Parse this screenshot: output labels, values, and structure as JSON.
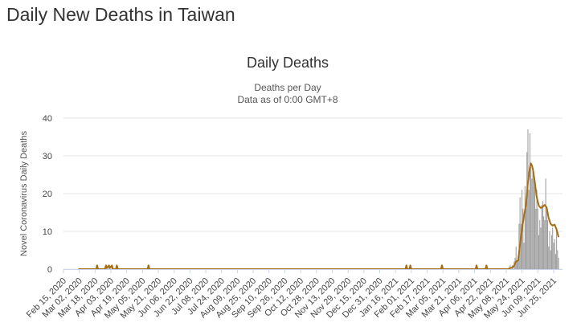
{
  "page": {
    "title": "Daily New Deaths in Taiwan"
  },
  "chart_data": {
    "type": "bar",
    "title": "Daily Deaths",
    "subtitle_line1": "Deaths per Day",
    "subtitle_line2": "Data as of 0:00 GMT+8",
    "ylabel": "Novel Coronavirus Daily Deaths",
    "xlabel": "",
    "ylim": [
      0,
      40
    ],
    "yticks": [
      0,
      10,
      20,
      30,
      40
    ],
    "grid": true,
    "legend": "none",
    "x_start": "2020-02-15",
    "x_end": "2021-07-04",
    "x_tick_labels": [
      "Feb 15, 2020",
      "Mar 02, 2020",
      "Mar 18, 2020",
      "Apr 03, 2020",
      "Apr 19, 2020",
      "May 05, 2020",
      "May 21, 2020",
      "Jun 06, 2020",
      "Jun 22, 2020",
      "Jul 08, 2020",
      "Jul 24, 2020",
      "Aug 09, 2020",
      "Aug 25, 2020",
      "Sep 10, 2020",
      "Sep 26, 2020",
      "Oct 12, 2020",
      "Oct 28, 2020",
      "Nov 13, 2020",
      "Nov 29, 2020",
      "Dec 15, 2020",
      "Dec 31, 2020",
      "Jan 16, 2021",
      "Feb 01, 2021",
      "Feb 17, 2021",
      "Mar 05, 2021",
      "Mar 21, 2021",
      "Apr 06, 2021",
      "Apr 22, 2021",
      "May 08, 2021",
      "May 24, 2021",
      "Jun 09, 2021",
      "Jun 25, 2021"
    ],
    "bar_color": "#999999",
    "line_color": "#a86d14",
    "daily_deaths": [
      {
        "date": "2020-03-20",
        "value": 1
      },
      {
        "date": "2020-03-29",
        "value": 1
      },
      {
        "date": "2020-04-01",
        "value": 1
      },
      {
        "date": "2020-04-04",
        "value": 1
      },
      {
        "date": "2020-04-09",
        "value": 1
      },
      {
        "date": "2020-05-11",
        "value": 1
      },
      {
        "date": "2021-01-27",
        "value": 1
      },
      {
        "date": "2021-01-31",
        "value": 1
      },
      {
        "date": "2021-03-04",
        "value": 1
      },
      {
        "date": "2021-04-08",
        "value": 1
      },
      {
        "date": "2021-04-18",
        "value": 1
      },
      {
        "date": "2021-05-12",
        "value": 1
      },
      {
        "date": "2021-05-14",
        "value": 1
      },
      {
        "date": "2021-05-16",
        "value": 2
      },
      {
        "date": "2021-05-17",
        "value": 3
      },
      {
        "date": "2021-05-18",
        "value": 6
      },
      {
        "date": "2021-05-19",
        "value": 2
      },
      {
        "date": "2021-05-20",
        "value": 2
      },
      {
        "date": "2021-05-21",
        "value": 12
      },
      {
        "date": "2021-05-22",
        "value": 19
      },
      {
        "date": "2021-05-23",
        "value": 12
      },
      {
        "date": "2021-05-24",
        "value": 21
      },
      {
        "date": "2021-05-25",
        "value": 16
      },
      {
        "date": "2021-05-26",
        "value": 7
      },
      {
        "date": "2021-05-27",
        "value": 22
      },
      {
        "date": "2021-05-28",
        "value": 16
      },
      {
        "date": "2021-05-29",
        "value": 31
      },
      {
        "date": "2021-05-30",
        "value": 37
      },
      {
        "date": "2021-05-31",
        "value": 21
      },
      {
        "date": "2021-06-01",
        "value": 36
      },
      {
        "date": "2021-06-02",
        "value": 27
      },
      {
        "date": "2021-06-03",
        "value": 24
      },
      {
        "date": "2021-06-04",
        "value": 26
      },
      {
        "date": "2021-06-05",
        "value": 24
      },
      {
        "date": "2021-06-06",
        "value": 23
      },
      {
        "date": "2021-06-07",
        "value": 16
      },
      {
        "date": "2021-06-08",
        "value": 21
      },
      {
        "date": "2021-06-09",
        "value": 16
      },
      {
        "date": "2021-06-10",
        "value": 9
      },
      {
        "date": "2021-06-11",
        "value": 13
      },
      {
        "date": "2021-06-12",
        "value": 11
      },
      {
        "date": "2021-06-13",
        "value": 17
      },
      {
        "date": "2021-06-14",
        "value": 18
      },
      {
        "date": "2021-06-15",
        "value": 14
      },
      {
        "date": "2021-06-16",
        "value": 13
      },
      {
        "date": "2021-06-17",
        "value": 24
      },
      {
        "date": "2021-06-18",
        "value": 16
      },
      {
        "date": "2021-06-19",
        "value": 13
      },
      {
        "date": "2021-06-20",
        "value": 6
      },
      {
        "date": "2021-06-21",
        "value": 10
      },
      {
        "date": "2021-06-22",
        "value": 5
      },
      {
        "date": "2021-06-23",
        "value": 9
      },
      {
        "date": "2021-06-24",
        "value": 11
      },
      {
        "date": "2021-06-25",
        "value": 7
      },
      {
        "date": "2021-06-26",
        "value": 8
      },
      {
        "date": "2021-06-27",
        "value": 4
      },
      {
        "date": "2021-06-28",
        "value": 11
      },
      {
        "date": "2021-06-29",
        "value": 5
      },
      {
        "date": "2021-06-30",
        "value": 3
      }
    ],
    "moving_average_7day": [
      {
        "date": "2020-03-01",
        "value": 0
      },
      {
        "date": "2020-03-19",
        "value": 0
      },
      {
        "date": "2020-03-20",
        "value": 1
      },
      {
        "date": "2020-03-21",
        "value": 0
      },
      {
        "date": "2020-03-28",
        "value": 0
      },
      {
        "date": "2020-03-29",
        "value": 1
      },
      {
        "date": "2020-03-30",
        "value": 0.3
      },
      {
        "date": "2020-04-01",
        "value": 1
      },
      {
        "date": "2020-04-02",
        "value": 0.3
      },
      {
        "date": "2020-04-04",
        "value": 1
      },
      {
        "date": "2020-04-05",
        "value": 0
      },
      {
        "date": "2020-04-08",
        "value": 0
      },
      {
        "date": "2020-04-09",
        "value": 1
      },
      {
        "date": "2020-04-10",
        "value": 0
      },
      {
        "date": "2020-05-10",
        "value": 0
      },
      {
        "date": "2020-05-11",
        "value": 1
      },
      {
        "date": "2020-05-12",
        "value": 0
      },
      {
        "date": "2021-01-26",
        "value": 0
      },
      {
        "date": "2021-01-27",
        "value": 1
      },
      {
        "date": "2021-01-28",
        "value": 0
      },
      {
        "date": "2021-01-30",
        "value": 0
      },
      {
        "date": "2021-01-31",
        "value": 1
      },
      {
        "date": "2021-02-01",
        "value": 0
      },
      {
        "date": "2021-03-03",
        "value": 0
      },
      {
        "date": "2021-03-04",
        "value": 1
      },
      {
        "date": "2021-03-05",
        "value": 0
      },
      {
        "date": "2021-04-07",
        "value": 0
      },
      {
        "date": "2021-04-08",
        "value": 1
      },
      {
        "date": "2021-04-09",
        "value": 0
      },
      {
        "date": "2021-04-17",
        "value": 0
      },
      {
        "date": "2021-04-18",
        "value": 1
      },
      {
        "date": "2021-04-19",
        "value": 0
      },
      {
        "date": "2021-05-10",
        "value": 0
      },
      {
        "date": "2021-05-12",
        "value": 0.3
      },
      {
        "date": "2021-05-14",
        "value": 0.4
      },
      {
        "date": "2021-05-16",
        "value": 0.9
      },
      {
        "date": "2021-05-18",
        "value": 2
      },
      {
        "date": "2021-05-20",
        "value": 2.3
      },
      {
        "date": "2021-05-22",
        "value": 6.4
      },
      {
        "date": "2021-05-24",
        "value": 10.6
      },
      {
        "date": "2021-05-26",
        "value": 14
      },
      {
        "date": "2021-05-28",
        "value": 17
      },
      {
        "date": "2021-05-30",
        "value": 23
      },
      {
        "date": "2021-06-01",
        "value": 27
      },
      {
        "date": "2021-06-02",
        "value": 28
      },
      {
        "date": "2021-06-03",
        "value": 27.5
      },
      {
        "date": "2021-06-04",
        "value": 26.5
      },
      {
        "date": "2021-06-06",
        "value": 23
      },
      {
        "date": "2021-06-08",
        "value": 19
      },
      {
        "date": "2021-06-10",
        "value": 16.8
      },
      {
        "date": "2021-06-12",
        "value": 16.2
      },
      {
        "date": "2021-06-14",
        "value": 16.5
      },
      {
        "date": "2021-06-16",
        "value": 17
      },
      {
        "date": "2021-06-18",
        "value": 16.3
      },
      {
        "date": "2021-06-20",
        "value": 13.5
      },
      {
        "date": "2021-06-22",
        "value": 12
      },
      {
        "date": "2021-06-24",
        "value": 11.5
      },
      {
        "date": "2021-06-26",
        "value": 11.8
      },
      {
        "date": "2021-06-28",
        "value": 10.5
      },
      {
        "date": "2021-06-30",
        "value": 8.5
      }
    ]
  }
}
